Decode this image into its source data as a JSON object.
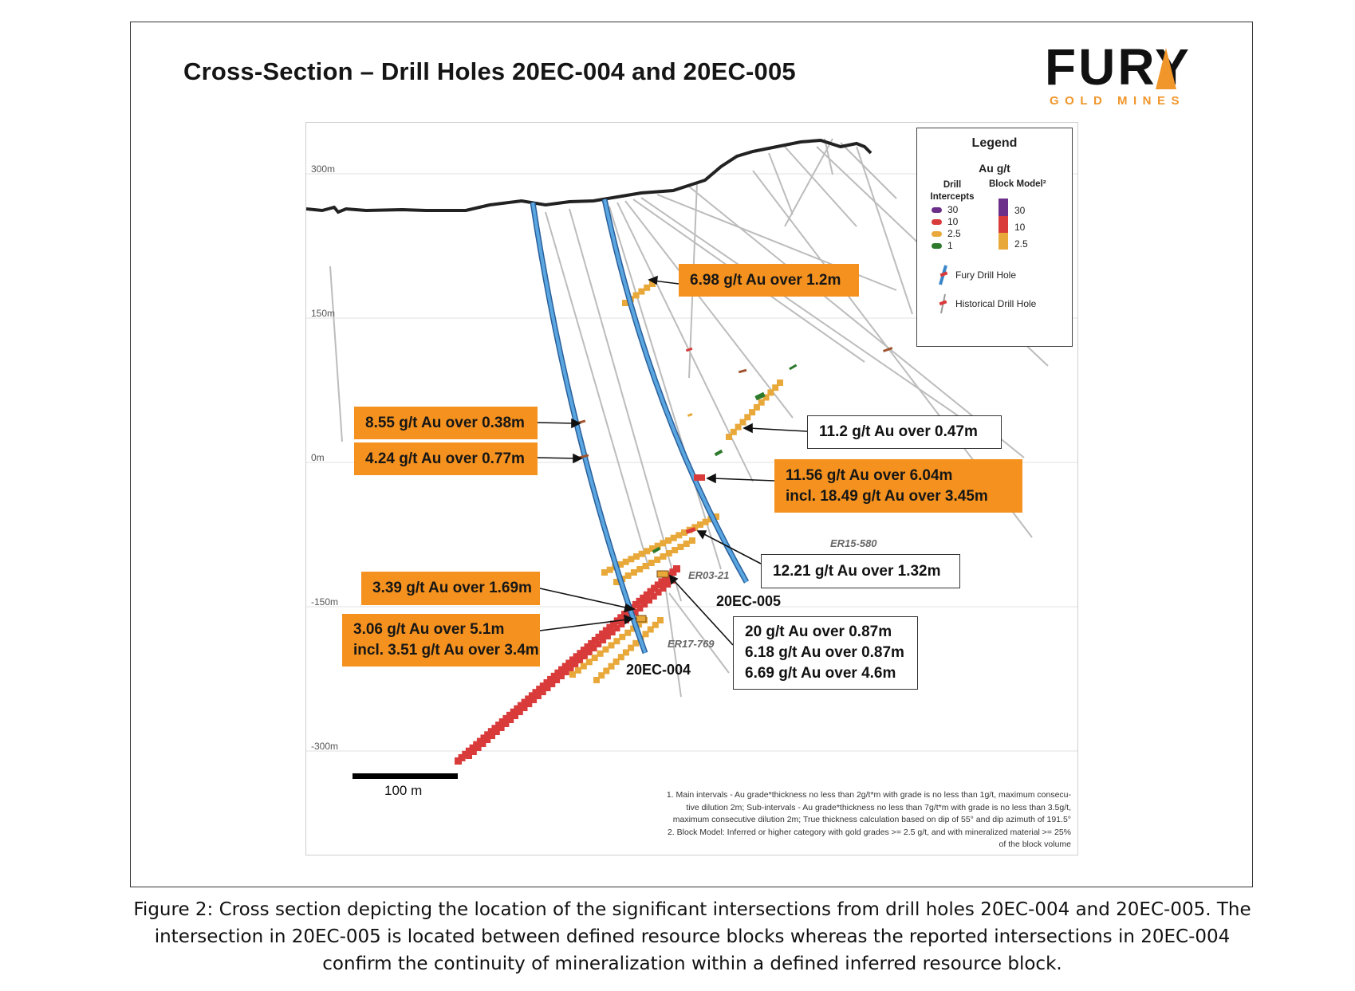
{
  "title": "Cross-Section – Drill Holes 20EC-004 and 20EC-005",
  "logo": {
    "word": "FURY",
    "sub": "GOLD MINES",
    "accent_color": "#f0962a"
  },
  "colors": {
    "fury_hole": "#3a86c8",
    "historical_hole": "#b8b8b8",
    "callout_orange": "#f5921f",
    "grade_30": "#6b2f8a",
    "grade_10": "#d93a3a",
    "grade_2_5": "#e8a93a",
    "grade_1": "#3a7a3a"
  },
  "elevations": [
    "300m",
    "150m",
    "0m",
    "-150m",
    "-300m"
  ],
  "legend": {
    "title": "Legend",
    "subtitle": "Au g/t",
    "drill_header": "Drill Intercepts",
    "block_header": "Block Model²",
    "drill_items": [
      "30",
      "10",
      "2.5",
      "1"
    ],
    "block_items": [
      "30",
      "10",
      "2.5"
    ],
    "fury": "Fury Drill Hole",
    "historical": "Historical Drill Hole"
  },
  "callouts": {
    "c1": "6.98 g/t Au over 1.2m",
    "c2": "8.55 g/t Au over 0.38m",
    "c3": "4.24 g/t Au over 0.77m",
    "c4": "11.2 g/t Au over 0.47m",
    "c5a": "11.56 g/t Au over 6.04m",
    "c5b": "incl. 18.49 g/t Au over 3.45m",
    "c6": "12.21 g/t Au over 1.32m",
    "c7": "3.39 g/t Au over 1.69m",
    "c8a": "3.06 g/t Au over 5.1m",
    "c8b": "incl. 3.51 g/t Au over 3.4m",
    "c9a": "20 g/t Au over 0.87m",
    "c9b": "6.18 g/t Au over 0.87m",
    "c9c": "6.69 g/t Au over 4.6m"
  },
  "holes": {
    "h4": "20EC-004",
    "h5": "20EC-005"
  },
  "historical_labels": [
    "ER15-580",
    "ER03-21",
    "ER17-769"
  ],
  "scale": "100 m",
  "notes": [
    "1. Main intervals - Au grade*thickness no less than 2g/t*m with grade is no less than 1g/t, maximum consecu-",
    "tive dilution 2m; Sub-intervals - Au grade*thickness no less than 7g/t*m with grade is no less than 3.5g/t,",
    "maximum consecutive dilution 2m; True thickness calculation based on dip of 55° and dip azimuth of 191.5°",
    "2. Block Model: Inferred or higher category with gold grades >= 2.5 g/t, and with mineralized material >= 25%",
    "of the block volume"
  ],
  "caption": "Figure 2: Cross section depicting the location of the significant intersections from drill holes 20EC-004 and 20EC-005. The intersection in 20EC-005 is located between defined resource blocks whereas the reported intersections in 20EC-004 confirm the continuity of mineralization within a defined inferred resource block."
}
